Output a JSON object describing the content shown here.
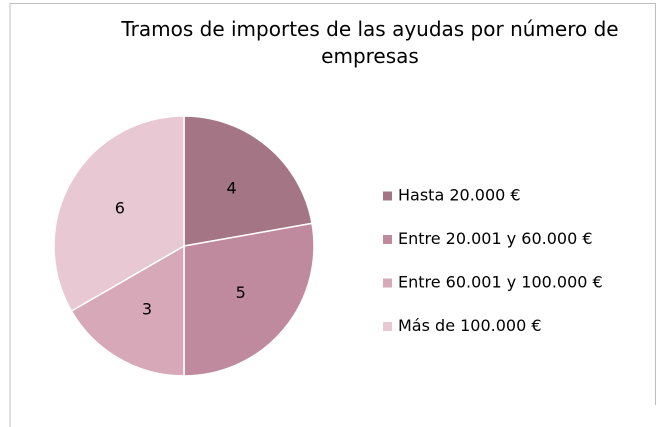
{
  "chart_data": {
    "type": "pie",
    "title": "Tramos de importes de las ayudas por número de empresas",
    "categories": [
      "Hasta 20.000 €",
      "Entre 20.001 y 60.000 €",
      "Entre 60.001 y 100.000 €",
      "Más de 100.000 €"
    ],
    "values": [
      4,
      5,
      3,
      6
    ],
    "colors": [
      "#a47585",
      "#c08a9e",
      "#d6a8b8",
      "#e8c8d2"
    ],
    "legend": "right"
  }
}
